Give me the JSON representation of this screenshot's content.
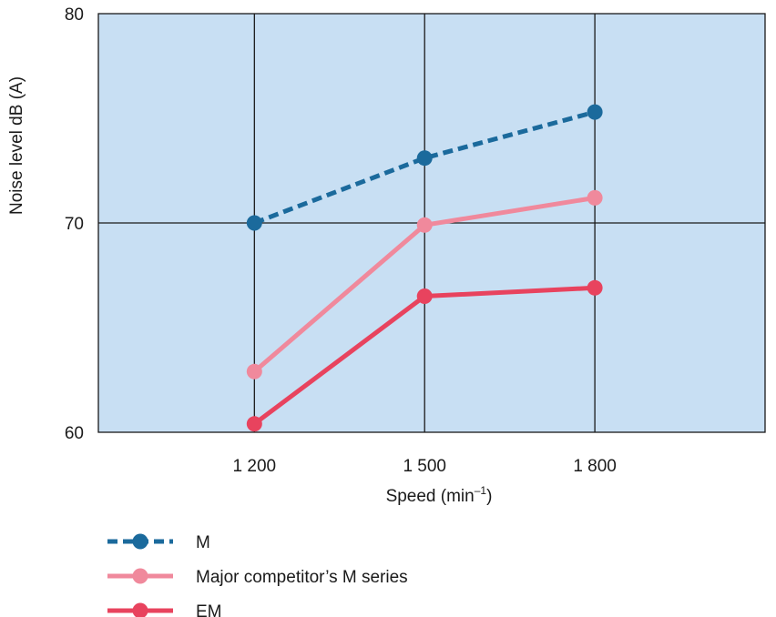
{
  "chart_data": {
    "type": "line",
    "title": "",
    "xlabel": "Speed (min",
    "xlabel_sup": "–1",
    "xlabel_suffix": ")",
    "ylabel": "Noise level dB (A)",
    "x_categories": [
      "1 200",
      "1 500",
      "1 800"
    ],
    "x": [
      1200,
      1500,
      1800
    ],
    "xlim": [
      925,
      2100
    ],
    "ylim": [
      60,
      80
    ],
    "y_ticks": [
      60,
      70,
      80
    ],
    "grid": true,
    "legend_position": "bottom-left",
    "plot_background": "#c8dff3",
    "series": [
      {
        "name": "M",
        "values": [
          70.0,
          73.1,
          75.3
        ],
        "color": "#1b6a9c",
        "dashed": true
      },
      {
        "name": "Major competitor’s M series",
        "values": [
          62.9,
          69.9,
          71.2
        ],
        "color": "#f0899c",
        "dashed": false
      },
      {
        "name": "EM",
        "values": [
          60.4,
          66.5,
          66.9
        ],
        "color": "#e8435e",
        "dashed": false
      }
    ]
  }
}
